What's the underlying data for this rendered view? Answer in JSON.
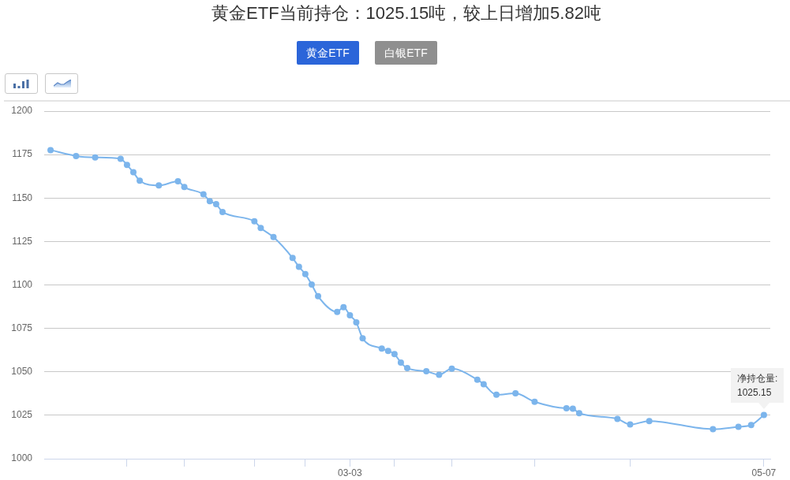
{
  "chart_data": {
    "type": "line",
    "title": "黄金ETF当前持仓：1025.15吨，较上日增加5.82吨",
    "x": [
      "--01-15",
      "--01-19",
      "--01-22",
      "--01-26",
      "--01-27",
      "--01-28",
      "--01-29",
      "--02-01",
      "--02-04",
      "--02-05",
      "--02-08",
      "--02-09",
      "--02-10",
      "--02-11",
      "--02-16",
      "--02-17",
      "--02-19",
      "--02-22",
      "--02-23",
      "--02-24",
      "--02-25",
      "--02-26",
      "--03-01",
      "--03-02",
      "--03-03",
      "--03-04",
      "--03-05",
      "--03-08",
      "--03-09",
      "--03-10",
      "--03-11",
      "--03-12",
      "--03-15",
      "--03-17",
      "--03-19",
      "--03-23",
      "--03-24",
      "--03-26",
      "--03-29",
      "--04-01",
      "--04-06",
      "--04-07",
      "--04-08",
      "--04-14",
      "--04-16",
      "--04-19",
      "--04-29",
      "--05-03",
      "--05-05",
      "--05-07"
    ],
    "series": [
      {
        "color": "#7cb5ec",
        "values": [
          1177.6,
          1174.2,
          1173.4,
          1172.6,
          1169.0,
          1164.8,
          1160.0,
          1157.2,
          1159.6,
          1156.3,
          1152.1,
          1148.2,
          1146.5,
          1142.0,
          1136.6,
          1132.8,
          1127.5,
          1115.5,
          1110.4,
          1106.2,
          1100.2,
          1093.5,
          1084.5,
          1087.2,
          1082.5,
          1078.5,
          1069.3,
          1063.4,
          1062.0,
          1060.2,
          1055.3,
          1052.1,
          1050.3,
          1048.3,
          1051.8,
          1045.5,
          1042.9,
          1036.8,
          1037.6,
          1032.8,
          1029.0,
          1028.8,
          1026.2,
          1022.9,
          1019.7,
          1021.7,
          1017.0,
          1018.4,
          1019.4,
          1025.15
        ]
      }
    ],
    "xlim": [
      "--01-14",
      "--05-08"
    ],
    "xticks": [
      {
        "value": "--01-27",
        "label": null
      },
      {
        "value": "--02-05",
        "label": null
      },
      {
        "value": "--02-16",
        "label": null
      },
      {
        "value": "--02-24",
        "label": null
      },
      {
        "value": "--03-03",
        "label": "03-03"
      },
      {
        "value": "--03-10",
        "label": null
      },
      {
        "value": "--03-19",
        "label": null
      },
      {
        "value": "--04-01",
        "label": null
      },
      {
        "value": "--04-16",
        "label": null
      },
      {
        "value": "--05-07",
        "label": "05-07"
      }
    ],
    "ylim": [
      1000,
      1200
    ],
    "yticks": [
      1000,
      1025,
      1050,
      1075,
      1100,
      1125,
      1150,
      1175,
      1200
    ],
    "grid": "y",
    "marker": "circle",
    "line_style": "solid",
    "annotations": [
      "黄金ETF",
      "白银ETF",
      {
        "text": "净持仓量:\n1025.15",
        "x": "--05-07",
        "y": 1025.15
      }
    ]
  }
}
